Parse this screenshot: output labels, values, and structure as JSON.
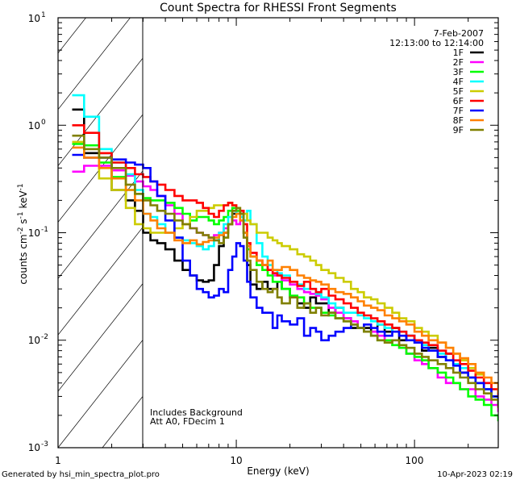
{
  "chart_data": {
    "type": "line",
    "title": "Count Spectra for RHESSI Front Segments",
    "xlabel": "Energy (keV)",
    "ylabel": "counts cm^-2 s^-1 keV^-1",
    "ylabel_parts": {
      "base": "counts cm",
      "e1": "-2",
      "mid": " s",
      "e2": "-1",
      "mid2": " keV",
      "e3": "-1"
    },
    "xscale": "log",
    "yscale": "log",
    "xlim": [
      1,
      295
    ],
    "ylim": [
      0.001,
      10
    ],
    "x_tick_labels": [
      "1",
      "10",
      "100"
    ],
    "y_tick_labels": [
      {
        "base": "10",
        "exp": "1"
      },
      {
        "base": "10",
        "exp": "0"
      },
      {
        "base": "10",
        "exp": "-1"
      },
      {
        "base": "10",
        "exp": "-2"
      },
      {
        "base": "10",
        "exp": "-3"
      }
    ],
    "grid": false,
    "legend_position": "top-right",
    "annotations": {
      "date": "7-Feb-2007",
      "time_range": "12:13:00 to 12:14:00",
      "background_note": "Includes Background",
      "attenuator_note": "Att A0, FDecim 1"
    },
    "hatched_region_keV": [
      1,
      3
    ],
    "energy_bins": [
      1.2,
      1.4,
      1.7,
      2.0,
      2.4,
      2.7,
      3.0,
      3.3,
      3.6,
      4.0,
      4.5,
      5.0,
      5.5,
      6.0,
      6.5,
      7.0,
      7.5,
      8.0,
      8.5,
      9.0,
      9.5,
      10.0,
      10.5,
      11.0,
      11.5,
      12.0,
      13.0,
      14.0,
      15.0,
      16.0,
      17.0,
      18.0,
      20.0,
      22.0,
      24.0,
      26.0,
      28.0,
      30.0,
      33.0,
      36.0,
      40.0,
      44.0,
      48.0,
      52.0,
      57.0,
      62.0,
      68.0,
      75.0,
      82.0,
      90.0,
      100.0,
      110.0,
      120.0,
      135.0,
      150.0,
      165.0,
      180.0,
      200.0,
      220.0,
      245.0,
      270.0,
      295.0
    ],
    "series": [
      {
        "name": "1F",
        "color": "#000000",
        "values": [
          1.4,
          0.55,
          0.55,
          0.25,
          0.2,
          0.16,
          0.1,
          0.085,
          0.08,
          0.07,
          0.055,
          0.045,
          0.04,
          0.036,
          0.035,
          0.036,
          0.05,
          0.075,
          0.1,
          0.12,
          0.15,
          0.16,
          0.15,
          0.1,
          0.05,
          0.033,
          0.03,
          0.035,
          0.03,
          0.03,
          0.035,
          0.03,
          0.025,
          0.022,
          0.02,
          0.025,
          0.022,
          0.022,
          0.018,
          0.02,
          0.016,
          0.013,
          0.013,
          0.013,
          0.012,
          0.014,
          0.012,
          0.013,
          0.01,
          0.011,
          0.01,
          0.008,
          0.0085,
          0.007,
          0.0075,
          0.006,
          0.005,
          0.0045,
          0.004,
          0.0035,
          0.003,
          0.0025
        ]
      },
      {
        "name": "2F",
        "color": "#ff00ff",
        "values": [
          0.37,
          0.42,
          0.42,
          0.38,
          0.34,
          0.3,
          0.27,
          0.25,
          0.22,
          0.18,
          0.15,
          0.12,
          0.11,
          0.1,
          0.095,
          0.09,
          0.095,
          0.1,
          0.11,
          0.12,
          0.13,
          0.12,
          0.13,
          0.1,
          0.075,
          0.065,
          0.055,
          0.05,
          0.045,
          0.04,
          0.04,
          0.036,
          0.033,
          0.03,
          0.028,
          0.027,
          0.026,
          0.024,
          0.02,
          0.018,
          0.016,
          0.015,
          0.013,
          0.012,
          0.012,
          0.011,
          0.01,
          0.01,
          0.0085,
          0.0075,
          0.0065,
          0.006,
          0.0055,
          0.0045,
          0.004,
          0.004,
          0.0035,
          0.0035,
          0.003,
          0.0028,
          0.0025,
          0.0022
        ]
      },
      {
        "name": "3F",
        "color": "#00ff00",
        "values": [
          0.67,
          0.65,
          0.45,
          0.33,
          0.25,
          0.23,
          0.21,
          0.2,
          0.2,
          0.19,
          0.17,
          0.15,
          0.13,
          0.14,
          0.14,
          0.13,
          0.12,
          0.13,
          0.14,
          0.16,
          0.17,
          0.16,
          0.14,
          0.1,
          0.07,
          0.06,
          0.05,
          0.045,
          0.04,
          0.035,
          0.035,
          0.03,
          0.026,
          0.025,
          0.022,
          0.02,
          0.02,
          0.018,
          0.017,
          0.016,
          0.015,
          0.014,
          0.013,
          0.012,
          0.011,
          0.01,
          0.01,
          0.009,
          0.0085,
          0.0075,
          0.007,
          0.0065,
          0.0055,
          0.005,
          0.0045,
          0.004,
          0.0035,
          0.003,
          0.0028,
          0.0025,
          0.002,
          0.0018
        ]
      },
      {
        "name": "4F",
        "color": "#00ffff",
        "values": [
          1.9,
          1.2,
          0.6,
          0.45,
          0.35,
          0.25,
          0.15,
          0.14,
          0.12,
          0.1,
          0.09,
          0.085,
          0.08,
          0.075,
          0.07,
          0.075,
          0.085,
          0.1,
          0.12,
          0.14,
          0.16,
          0.15,
          0.14,
          0.13,
          0.16,
          0.12,
          0.08,
          0.06,
          0.05,
          0.045,
          0.042,
          0.04,
          0.035,
          0.033,
          0.03,
          0.03,
          0.027,
          0.025,
          0.022,
          0.02,
          0.018,
          0.018,
          0.017,
          0.016,
          0.015,
          0.014,
          0.013,
          0.012,
          0.012,
          0.011,
          0.0095,
          0.009,
          0.008,
          0.0075,
          0.0065,
          0.006,
          0.0055,
          0.0045,
          0.004,
          0.0035,
          0.003,
          0.0026
        ]
      },
      {
        "name": "5F",
        "color": "#cccc00",
        "values": [
          0.7,
          0.6,
          0.32,
          0.25,
          0.17,
          0.12,
          0.11,
          0.1,
          0.1,
          0.1,
          0.11,
          0.12,
          0.14,
          0.16,
          0.16,
          0.17,
          0.18,
          0.18,
          0.18,
          0.19,
          0.18,
          0.17,
          0.16,
          0.15,
          0.13,
          0.12,
          0.1,
          0.1,
          0.09,
          0.085,
          0.08,
          0.075,
          0.07,
          0.063,
          0.06,
          0.055,
          0.05,
          0.045,
          0.042,
          0.038,
          0.035,
          0.03,
          0.028,
          0.025,
          0.024,
          0.022,
          0.02,
          0.018,
          0.016,
          0.015,
          0.013,
          0.012,
          0.011,
          0.0095,
          0.0085,
          0.0075,
          0.0065,
          0.0055,
          0.0048,
          0.004,
          0.0035,
          0.003
        ]
      },
      {
        "name": "6F",
        "color": "#ff0000",
        "values": [
          1.0,
          0.85,
          0.55,
          0.45,
          0.4,
          0.35,
          0.33,
          0.3,
          0.28,
          0.25,
          0.22,
          0.2,
          0.2,
          0.19,
          0.17,
          0.15,
          0.14,
          0.16,
          0.18,
          0.19,
          0.18,
          0.17,
          0.16,
          0.12,
          0.08,
          0.065,
          0.055,
          0.05,
          0.045,
          0.042,
          0.04,
          0.038,
          0.035,
          0.032,
          0.035,
          0.03,
          0.028,
          0.03,
          0.026,
          0.024,
          0.022,
          0.02,
          0.018,
          0.017,
          0.016,
          0.015,
          0.014,
          0.013,
          0.012,
          0.011,
          0.01,
          0.0095,
          0.009,
          0.008,
          0.0075,
          0.0065,
          0.006,
          0.0052,
          0.0045,
          0.004,
          0.0035,
          0.003
        ]
      },
      {
        "name": "7F",
        "color": "#0000ff",
        "values": [
          0.53,
          0.5,
          0.5,
          0.48,
          0.45,
          0.43,
          0.4,
          0.3,
          0.22,
          0.13,
          0.09,
          0.055,
          0.04,
          0.03,
          0.028,
          0.025,
          0.026,
          0.03,
          0.028,
          0.045,
          0.06,
          0.08,
          0.075,
          0.055,
          0.035,
          0.025,
          0.02,
          0.018,
          0.018,
          0.013,
          0.017,
          0.015,
          0.014,
          0.016,
          0.011,
          0.013,
          0.012,
          0.01,
          0.011,
          0.012,
          0.013,
          0.014,
          0.013,
          0.014,
          0.013,
          0.012,
          0.011,
          0.012,
          0.011,
          0.01,
          0.0095,
          0.0085,
          0.008,
          0.007,
          0.0065,
          0.0058,
          0.005,
          0.0045,
          0.004,
          0.0035,
          0.003,
          0.0025
        ]
      },
      {
        "name": "8F",
        "color": "#ff8000",
        "values": [
          0.62,
          0.5,
          0.4,
          0.32,
          0.25,
          0.2,
          0.15,
          0.13,
          0.11,
          0.1,
          0.085,
          0.08,
          0.085,
          0.078,
          0.082,
          0.085,
          0.09,
          0.095,
          0.1,
          0.12,
          0.14,
          0.15,
          0.13,
          0.1,
          0.075,
          0.06,
          0.055,
          0.05,
          0.055,
          0.045,
          0.045,
          0.048,
          0.045,
          0.04,
          0.038,
          0.036,
          0.035,
          0.033,
          0.03,
          0.028,
          0.027,
          0.025,
          0.023,
          0.021,
          0.02,
          0.019,
          0.017,
          0.016,
          0.015,
          0.014,
          0.012,
          0.011,
          0.01,
          0.0095,
          0.0085,
          0.0075,
          0.0068,
          0.006,
          0.005,
          0.0045,
          0.004,
          0.0033
        ]
      },
      {
        "name": "9F",
        "color": "#808000",
        "values": [
          0.8,
          0.6,
          0.5,
          0.4,
          0.28,
          0.23,
          0.2,
          0.18,
          0.16,
          0.15,
          0.13,
          0.12,
          0.11,
          0.1,
          0.095,
          0.09,
          0.085,
          0.08,
          0.09,
          0.12,
          0.16,
          0.17,
          0.15,
          0.09,
          0.055,
          0.045,
          0.035,
          0.03,
          0.028,
          0.03,
          0.025,
          0.022,
          0.025,
          0.02,
          0.022,
          0.018,
          0.02,
          0.017,
          0.018,
          0.016,
          0.015,
          0.014,
          0.013,
          0.012,
          0.011,
          0.01,
          0.0095,
          0.01,
          0.009,
          0.0085,
          0.0075,
          0.007,
          0.0065,
          0.006,
          0.0055,
          0.005,
          0.0045,
          0.004,
          0.0035,
          0.0032,
          0.0028,
          0.0024
        ]
      }
    ]
  },
  "footer": {
    "generated_by": "Generated by hsi_min_spectra_plot.pro",
    "timestamp": "10-Apr-2023 02:19"
  }
}
